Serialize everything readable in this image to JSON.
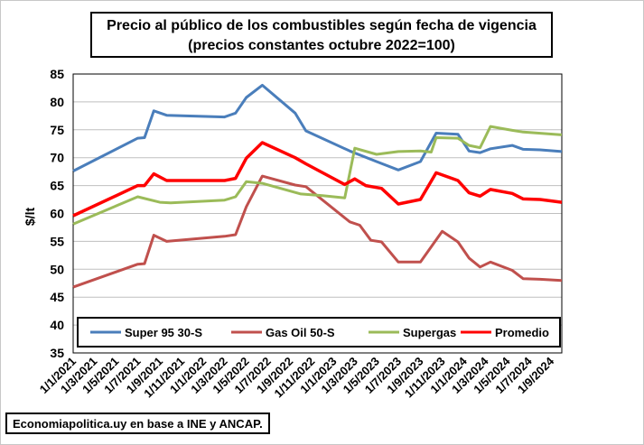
{
  "chart_data": {
    "type": "line",
    "title": "Precio al público de los combustibles según fecha de vigencia",
    "subtitle": "(precios constantes octubre 2022=100)",
    "ylabel": "$/lt",
    "xlabel": "",
    "ylim": [
      35,
      85
    ],
    "yticks": [
      "35",
      "40",
      "45",
      "50",
      "55",
      "60",
      "65",
      "70",
      "75",
      "80",
      "85"
    ],
    "xlim": [
      "2021-01-01",
      "2024-10-01"
    ],
    "x_tick_labels": [
      "1/1/2021",
      "1/3/2021",
      "1/5/2021",
      "1/7/2021",
      "1/9/2021",
      "1/11/2021",
      "1/1/2022",
      "1/3/2022",
      "1/5/2022",
      "1/7/2022",
      "1/9/2022",
      "1/11/2022",
      "1/1/2023",
      "1/3/2023",
      "1/5/2023",
      "1/7/2023",
      "1/9/2023",
      "1/11/2023",
      "1/1/2024",
      "1/3/2024",
      "1/5/2024",
      "1/7/2024",
      "1/9/2024"
    ],
    "grid": "horizontal",
    "legend_position": "bottom-inside",
    "series": [
      {
        "name": "Super 95 30-S",
        "color": "#4a7ebb",
        "points": [
          [
            "2021-01-01",
            67.6
          ],
          [
            "2021-07-01",
            73.5
          ],
          [
            "2021-07-20",
            73.6
          ],
          [
            "2021-08-15",
            78.4
          ],
          [
            "2021-09-20",
            77.6
          ],
          [
            "2022-03-01",
            77.3
          ],
          [
            "2022-04-01",
            78.0
          ],
          [
            "2022-05-01",
            80.8
          ],
          [
            "2022-06-15",
            83.0
          ],
          [
            "2022-09-15",
            78.0
          ],
          [
            "2022-10-15",
            74.8
          ],
          [
            "2023-02-15",
            71.2
          ],
          [
            "2023-05-01",
            69.3
          ],
          [
            "2023-07-01",
            67.8
          ],
          [
            "2023-09-01",
            69.3
          ],
          [
            "2023-10-15",
            74.4
          ],
          [
            "2023-12-15",
            74.2
          ],
          [
            "2024-01-15",
            71.2
          ],
          [
            "2024-02-15",
            70.9
          ],
          [
            "2024-03-15",
            71.6
          ],
          [
            "2024-05-15",
            72.2
          ],
          [
            "2024-06-15",
            71.5
          ],
          [
            "2024-08-01",
            71.4
          ],
          [
            "2024-10-01",
            71.1
          ]
        ]
      },
      {
        "name": "Gas Oil 50-S",
        "color": "#c0504d",
        "points": [
          [
            "2021-01-01",
            46.8
          ],
          [
            "2021-07-01",
            50.9
          ],
          [
            "2021-07-20",
            51.0
          ],
          [
            "2021-08-15",
            56.1
          ],
          [
            "2021-09-20",
            55.0
          ],
          [
            "2022-03-01",
            55.9
          ],
          [
            "2022-04-01",
            56.2
          ],
          [
            "2022-05-01",
            61.2
          ],
          [
            "2022-06-15",
            66.7
          ],
          [
            "2022-09-15",
            65.1
          ],
          [
            "2022-10-15",
            64.8
          ],
          [
            "2023-02-15",
            58.5
          ],
          [
            "2023-03-15",
            57.9
          ],
          [
            "2023-04-15",
            55.2
          ],
          [
            "2023-05-15",
            54.9
          ],
          [
            "2023-07-01",
            51.3
          ],
          [
            "2023-09-01",
            51.3
          ],
          [
            "2023-11-01",
            56.8
          ],
          [
            "2023-12-15",
            54.9
          ],
          [
            "2024-01-15",
            52.0
          ],
          [
            "2024-02-15",
            50.4
          ],
          [
            "2024-03-15",
            51.3
          ],
          [
            "2024-05-15",
            49.8
          ],
          [
            "2024-06-15",
            48.3
          ],
          [
            "2024-08-01",
            48.2
          ],
          [
            "2024-10-01",
            48.0
          ]
        ]
      },
      {
        "name": "Supergas",
        "color": "#9bbb59",
        "points": [
          [
            "2021-01-01",
            58.1
          ],
          [
            "2021-07-01",
            63.0
          ],
          [
            "2021-09-01",
            62.0
          ],
          [
            "2021-10-01",
            61.9
          ],
          [
            "2022-03-01",
            62.4
          ],
          [
            "2022-04-01",
            63.0
          ],
          [
            "2022-05-01",
            65.7
          ],
          [
            "2022-06-15",
            65.4
          ],
          [
            "2022-10-01",
            63.5
          ],
          [
            "2022-12-01",
            63.2
          ],
          [
            "2023-02-01",
            62.8
          ],
          [
            "2023-03-01",
            71.7
          ],
          [
            "2023-05-01",
            70.6
          ],
          [
            "2023-07-01",
            71.1
          ],
          [
            "2023-09-01",
            71.2
          ],
          [
            "2023-10-01",
            71.0
          ],
          [
            "2023-10-15",
            73.6
          ],
          [
            "2023-12-15",
            73.5
          ],
          [
            "2024-01-15",
            72.2
          ],
          [
            "2024-02-15",
            71.8
          ],
          [
            "2024-03-15",
            75.6
          ],
          [
            "2024-05-15",
            74.9
          ],
          [
            "2024-06-15",
            74.6
          ],
          [
            "2024-10-01",
            74.1
          ]
        ]
      },
      {
        "name": "Promedio",
        "color": "#ff0000",
        "points": [
          [
            "2021-01-01",
            59.6
          ],
          [
            "2021-07-01",
            65.0
          ],
          [
            "2021-07-20",
            65.0
          ],
          [
            "2021-08-15",
            67.1
          ],
          [
            "2021-09-20",
            65.9
          ],
          [
            "2022-03-01",
            65.9
          ],
          [
            "2022-04-01",
            66.3
          ],
          [
            "2022-05-01",
            69.9
          ],
          [
            "2022-06-15",
            72.7
          ],
          [
            "2022-09-15",
            70.0
          ],
          [
            "2022-10-15",
            68.9
          ],
          [
            "2023-02-01",
            65.2
          ],
          [
            "2023-03-01",
            66.2
          ],
          [
            "2023-04-01",
            65.0
          ],
          [
            "2023-05-15",
            64.5
          ],
          [
            "2023-07-01",
            61.7
          ],
          [
            "2023-09-01",
            62.5
          ],
          [
            "2023-10-15",
            67.3
          ],
          [
            "2023-12-15",
            65.9
          ],
          [
            "2024-01-15",
            63.7
          ],
          [
            "2024-02-15",
            63.1
          ],
          [
            "2024-03-15",
            64.3
          ],
          [
            "2024-05-15",
            63.6
          ],
          [
            "2024-06-15",
            62.6
          ],
          [
            "2024-08-01",
            62.5
          ],
          [
            "2024-10-01",
            62.0
          ]
        ]
      }
    ]
  },
  "source": "Economiapolitica.uy en base a INE y ANCAP."
}
